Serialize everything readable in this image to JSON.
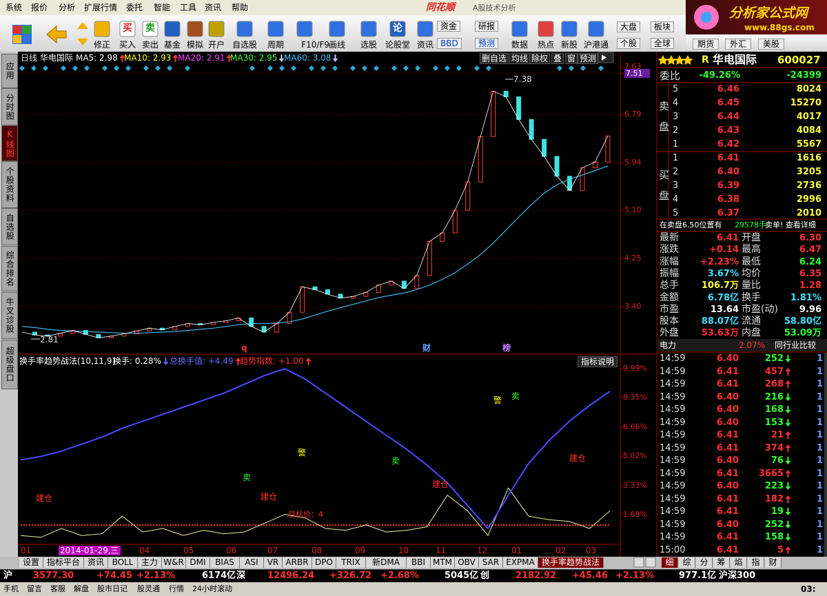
{
  "menu": [
    "系统",
    "报价",
    "分析",
    "扩展行情",
    "委托",
    "智能",
    "工具",
    "资讯",
    "帮助"
  ],
  "app": {
    "brand": "同花顺",
    "subtitle": "A股技术分析"
  },
  "logo": {
    "title": "分析家公式网",
    "url": "www.88gs.com"
  },
  "toolbar": {
    "buttons": [
      "修正",
      "买入",
      "卖出",
      "基金",
      "模拟",
      "开户",
      "自选股",
      "周期",
      "F10/F9",
      "画线",
      "选股",
      "论股堂",
      "资讯"
    ],
    "glyphs": [
      "买",
      "卖",
      "论"
    ],
    "pairs": [
      [
        "资金",
        "BBD"
      ],
      [
        "研报",
        "预测"
      ],
      [
        "大盘",
        "个股"
      ],
      [
        "板块",
        "全球"
      ]
    ],
    "single": [
      "数据",
      "热点",
      "新股",
      "沪港通"
    ],
    "markets": [
      "期货",
      "外汇",
      "美股"
    ]
  },
  "side_tabs": [
    "应用",
    "分时图",
    "K线图",
    "个股资料",
    "自选股",
    "综合排名",
    "牛叉诊股",
    "超级盘口"
  ],
  "side_active": 2,
  "kline": {
    "period": "日线",
    "name": "华电国际",
    "ma": [
      {
        "label": "MA5: 2.98",
        "dir": "up",
        "color": "#ffffff"
      },
      {
        "label": "MA10: 2.93",
        "dir": "up",
        "color": "#ffff00"
      },
      {
        "label": "MA20: 2.91",
        "dir": "up",
        "color": "#ff40ff"
      },
      {
        "label": "MA30: 2.95",
        "dir": "down",
        "color": "#40ff40"
      },
      {
        "label": "MA60: 3.08",
        "dir": "down",
        "color": "#40c0ff"
      }
    ],
    "buttons": [
      "删自选",
      "均线",
      "除权",
      "叠",
      "窗",
      "预测"
    ],
    "ylim": [
      2.61,
      7.69
    ],
    "yticks": [
      {
        "value": 7.63,
        "label": "7.63"
      },
      {
        "value": 7.51,
        "label": "7.51"
      },
      {
        "value": 6.79,
        "label": "6.79"
      },
      {
        "value": 5.94,
        "label": "5.94"
      },
      {
        "value": 5.1,
        "label": "5.10"
      },
      {
        "value": 4.25,
        "label": "4.25"
      },
      {
        "value": 3.4,
        "label": "3.40"
      }
    ],
    "close": [
      2.95,
      2.9,
      2.88,
      2.93,
      2.98,
      2.91,
      2.85,
      2.88,
      2.92,
      2.97,
      3.02,
      2.99,
      3.05,
      3.1,
      3.08,
      3.12,
      3.15,
      3.2,
      3.05,
      2.95,
      3.1,
      3.3,
      3.75,
      3.7,
      3.62,
      3.55,
      3.58,
      3.65,
      3.78,
      3.85,
      3.72,
      3.95,
      4.55,
      4.7,
      5.1,
      5.6,
      6.4,
      7.2,
      7.1,
      6.7,
      6.35,
      6.05,
      5.7,
      5.45,
      5.85,
      5.95,
      6.41
    ],
    "ma60": [
      3.05,
      3.03,
      3.0,
      2.98,
      2.97,
      2.96,
      2.95,
      2.94,
      2.93,
      2.93,
      2.94,
      2.95,
      2.96,
      2.98,
      3.0,
      3.02,
      3.05,
      3.08,
      3.1,
      3.1,
      3.11,
      3.13,
      3.18,
      3.25,
      3.32,
      3.38,
      3.44,
      3.5,
      3.56,
      3.6,
      3.64,
      3.7,
      3.78,
      3.88,
      4.0,
      4.15,
      4.32,
      4.52,
      4.75,
      4.98,
      5.2,
      5.4,
      5.55,
      5.65,
      5.72,
      5.8,
      5.88
    ],
    "high_label": "7.38",
    "low_label": "2.81",
    "events": [
      "q",
      "财",
      "榜"
    ]
  },
  "indicator": {
    "title": "换手率趋势战法(10,11,9)",
    "turnover": "换手: 0.28%",
    "turnover_dir": "down",
    "total": "总换手值: +4.49",
    "total_dir": "up",
    "trend": "趋势指数: +1.00",
    "trend_dir": "up",
    "help": "指标说明",
    "ylim": [
      0,
      10.66
    ],
    "yticks": [
      {
        "value": 9.99,
        "label": "9.99%"
      },
      {
        "value": 8.35,
        "label": "8.35%"
      },
      {
        "value": 6.66,
        "label": "6.66%"
      },
      {
        "value": 5.02,
        "label": "5.02%"
      },
      {
        "value": 3.33,
        "label": "3.33%"
      },
      {
        "value": 1.69,
        "label": "1.69%"
      }
    ],
    "total_line": [
      4.8,
      5.0,
      5.3,
      5.7,
      6.1,
      6.6,
      7.0,
      7.4,
      7.8,
      8.2,
      8.6,
      9.1,
      9.6,
      9.99,
      9.4,
      8.6,
      7.8,
      7.0,
      6.2,
      5.4,
      4.5,
      3.5,
      2.2,
      0.9,
      2.8,
      4.6,
      5.9,
      7.0,
      7.9,
      8.7
    ],
    "turnover_line": [
      0.5,
      0.4,
      0.9,
      0.5,
      0.6,
      1.6,
      0.7,
      0.9,
      0.5,
      0.8,
      0.6,
      0.7,
      1.2,
      1.7,
      1.5,
      0.9,
      0.8,
      1.1,
      0.7,
      0.8,
      1.0,
      2.8,
      1.9,
      0.5,
      3.2,
      1.6,
      1.4,
      1.3,
      0.9,
      1.9
    ],
    "signals": [
      {
        "text": "建仓",
        "color": "#ff3030"
      },
      {
        "text": "建仓",
        "color": "#ff3030"
      },
      {
        "text": "建仓",
        "color": "#ff3030"
      },
      {
        "text": "建仓",
        "color": "#ff3030"
      },
      {
        "text": "卖",
        "color": "#30ff30"
      },
      {
        "text": "卖",
        "color": "#30ff30"
      },
      {
        "text": "卖",
        "color": "#30ff30"
      },
      {
        "text": "警",
        "color": "#ffff00"
      },
      {
        "text": "警",
        "color": "#ffff00"
      }
    ],
    "target": "目标价：4"
  },
  "time_axis": [
    "01",
    "2014-01-29,三",
    "04",
    "05",
    "06",
    "07",
    "08",
    "09",
    "10",
    "11",
    "12",
    "01",
    "02",
    "03"
  ],
  "time_active": 1,
  "bottom_tabs": [
    "设置",
    "指标平台",
    "资讯",
    "BOLL",
    "主力",
    "W&R",
    "DMI",
    "BIAS",
    "ASI",
    "VR",
    "ARBR",
    "DPO",
    "TRIX",
    "新DMA",
    "BBI",
    "MTM",
    "OBV",
    "SAR",
    "EXPMA",
    "换手率趋势战法"
  ],
  "bottom_active": 19,
  "panel_tabs": [
    "细",
    "综",
    "分",
    "筹",
    "焰",
    "指",
    "财"
  ],
  "index_bar": [
    {
      "text": "沪",
      "color": "#ffffff"
    },
    {
      "text": "3577.30",
      "color": "#ff3030"
    },
    {
      "text": "+74.45",
      "color": "#ff3030"
    },
    {
      "text": "+2.13%",
      "color": "#ff3030"
    },
    {
      "text": "6174亿",
      "color": "#ffffff"
    },
    {
      "text": "深",
      "color": "#ffffff"
    },
    {
      "text": "12496.24",
      "color": "#ff3030"
    },
    {
      "text": "+326.72",
      "color": "#ff3030"
    },
    {
      "text": "+2.68%",
      "color": "#ff3030"
    },
    {
      "text": "5045亿",
      "color": "#ffffff"
    },
    {
      "text": "创",
      "color": "#ffffff"
    },
    {
      "text": "2182.92",
      "color": "#ff3030"
    },
    {
      "text": "+45.46",
      "color": "#ff3030"
    },
    {
      "text": "+2.13%",
      "color": "#ff3030"
    },
    {
      "text": "977.1亿",
      "color": "#ffffff"
    },
    {
      "text": "沪深300",
      "color": "#ffffff"
    }
  ],
  "status_bar": [
    "手机",
    "留言",
    "客服",
    "解盘",
    "股市日记",
    "股灵通",
    "行情",
    "24小时滚动"
  ],
  "clock": "03:",
  "quote": {
    "flag": "R",
    "name": "华电国际",
    "code": "600027",
    "wb_label": "委比",
    "wb_pct": "-49.26%",
    "wb_diff": "-24399",
    "sell_label": [
      "卖",
      "盘"
    ],
    "buy_label": [
      "买",
      "盘"
    ],
    "sell": [
      {
        "level": "5",
        "price": "6.46",
        "vol": "8024"
      },
      {
        "level": "4",
        "price": "6.45",
        "vol": "15270"
      },
      {
        "level": "3",
        "price": "6.44",
        "vol": "4017"
      },
      {
        "level": "2",
        "price": "6.43",
        "vol": "4084"
      },
      {
        "level": "1",
        "price": "6.42",
        "vol": "5567"
      }
    ],
    "buy": [
      {
        "level": "1",
        "price": "6.41",
        "vol": "1616"
      },
      {
        "level": "2",
        "price": "6.40",
        "vol": "3205"
      },
      {
        "level": "3",
        "price": "6.39",
        "vol": "2736"
      },
      {
        "level": "4",
        "price": "6.38",
        "vol": "2996"
      },
      {
        "level": "5",
        "price": "6.37",
        "vol": "2010"
      }
    ],
    "notice": [
      "在卖盘6.50位置有",
      "29578手",
      "卖单! 查看详细"
    ],
    "grid": [
      [
        "最新",
        "6.41",
        "#ff3030",
        "开盘",
        "6.30",
        "#ff3030"
      ],
      [
        "涨跌",
        "+0.14",
        "#ff3030",
        "最高",
        "6.47",
        "#ff3030"
      ],
      [
        "涨幅",
        "+2.23%",
        "#ff3030",
        "最低",
        "6.24",
        "#30ff30"
      ],
      [
        "振幅",
        "3.67%",
        "#40e0ff",
        "均价",
        "6.35",
        "#ff3030"
      ],
      [
        "总手",
        "106.7万",
        "#ffff40",
        "量比",
        "1.28",
        "#ff3030"
      ],
      [
        "金额",
        "6.78亿",
        "#40e0ff",
        "换手",
        "1.81%",
        "#40e0ff"
      ],
      [
        "市盈",
        "13.64",
        "#ffffff",
        "市盈(动)",
        "9.96",
        "#ffffff"
      ],
      [
        "股本",
        "88.07亿",
        "#40e0ff",
        "流通",
        "58.80亿",
        "#40e0ff"
      ],
      [
        "外盘",
        "53.63万",
        "#ff3030",
        "内盘",
        "53.09万",
        "#30ff30"
      ]
    ]
  },
  "sector": {
    "name": "电力",
    "pct": "2.07%",
    "compare": "同行业比较"
  },
  "ticks": [
    {
      "time": "14:59",
      "price": "6.40",
      "vol": "252",
      "dir": "down",
      "num": "1"
    },
    {
      "time": "14:59",
      "price": "6.41",
      "vol": "457",
      "dir": "up",
      "num": "1"
    },
    {
      "time": "14:59",
      "price": "6.41",
      "vol": "268",
      "dir": "up",
      "num": "1"
    },
    {
      "time": "14:59",
      "price": "6.40",
      "vol": "216",
      "dir": "down",
      "num": "1"
    },
    {
      "time": "14:59",
      "price": "6.40",
      "vol": "168",
      "dir": "down",
      "num": "1"
    },
    {
      "time": "14:59",
      "price": "6.40",
      "vol": "153",
      "dir": "down",
      "num": "1"
    },
    {
      "time": "14:59",
      "price": "6.41",
      "vol": "21",
      "dir": "up",
      "num": "1"
    },
    {
      "time": "14:59",
      "price": "6.41",
      "vol": "374",
      "dir": "up",
      "num": "1"
    },
    {
      "time": "14:59",
      "price": "6.40",
      "vol": "76",
      "dir": "down",
      "num": "1"
    },
    {
      "time": "14:59",
      "price": "6.41",
      "vol": "3665",
      "dir": "up",
      "num": "1"
    },
    {
      "time": "14:59",
      "price": "6.40",
      "vol": "223",
      "dir": "down",
      "num": "1"
    },
    {
      "time": "14:59",
      "price": "6.41",
      "vol": "182",
      "dir": "up",
      "num": "1"
    },
    {
      "time": "14:59",
      "price": "6.41",
      "vol": "19",
      "dir": "down",
      "num": "1"
    },
    {
      "time": "14:59",
      "price": "6.40",
      "vol": "252",
      "dir": "down",
      "num": "1"
    },
    {
      "time": "14:59",
      "price": "6.41",
      "vol": "158",
      "dir": "down",
      "num": "1"
    },
    {
      "time": "15:00",
      "price": "6.41",
      "vol": "5",
      "dir": "up",
      "num": "1"
    }
  ]
}
